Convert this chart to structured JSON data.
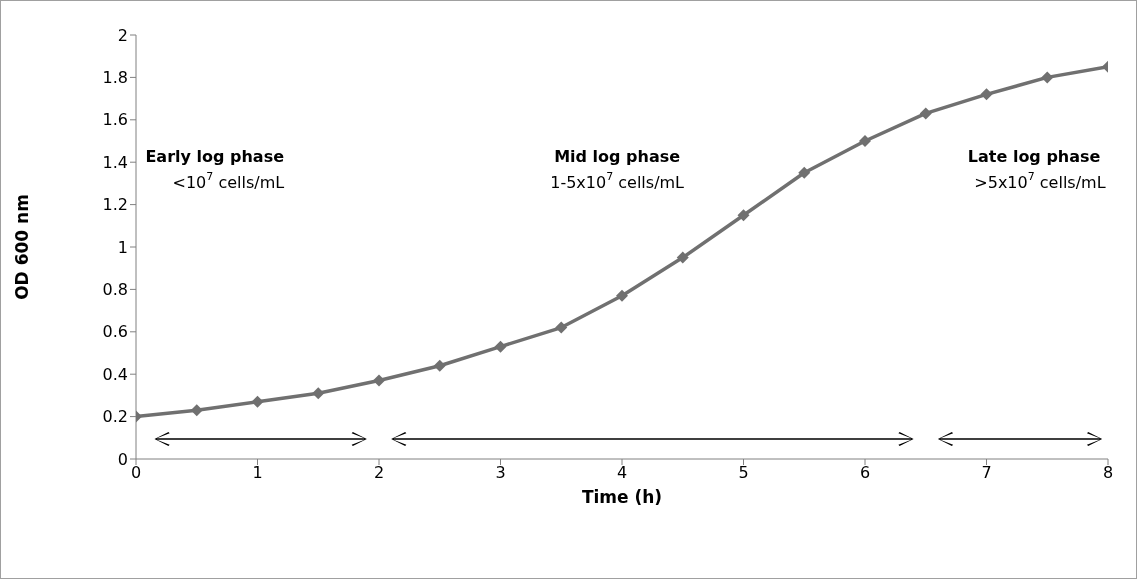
{
  "chart_data": {
    "type": "line",
    "xlabel": "Time (h)",
    "ylabel": "OD 600 nm",
    "x": [
      0,
      0.5,
      1,
      1.5,
      2,
      2.5,
      3,
      3.5,
      4,
      4.5,
      5,
      5.5,
      6,
      6.5,
      7,
      7.5,
      8
    ],
    "series": [
      {
        "color": "#707070",
        "values": [
          0.2,
          0.23,
          0.27,
          0.31,
          0.37,
          0.44,
          0.53,
          0.62,
          0.77,
          0.95,
          1.15,
          1.35,
          1.5,
          1.63,
          1.72,
          1.8,
          1.85
        ]
      }
    ],
    "xlim": [
      0,
      8
    ],
    "xticks": [
      0,
      1,
      2,
      3,
      4,
      5,
      6,
      7,
      8
    ],
    "ylim": [
      0,
      2
    ],
    "yticks": [
      0,
      0.2,
      0.4,
      0.6,
      0.8,
      1,
      1.2,
      1.4,
      1.6,
      1.8,
      2
    ],
    "grid": false,
    "legend": false,
    "marker": "diamond",
    "line_style": "solid",
    "annotations": [
      "Early log phase",
      "<10$^{7}$ cells/mL",
      "Mid log phase",
      "1-5x10$^{7}$ cells/mL",
      "Late log phase",
      ">5x10$^{7}$ cells/mL"
    ]
  }
}
